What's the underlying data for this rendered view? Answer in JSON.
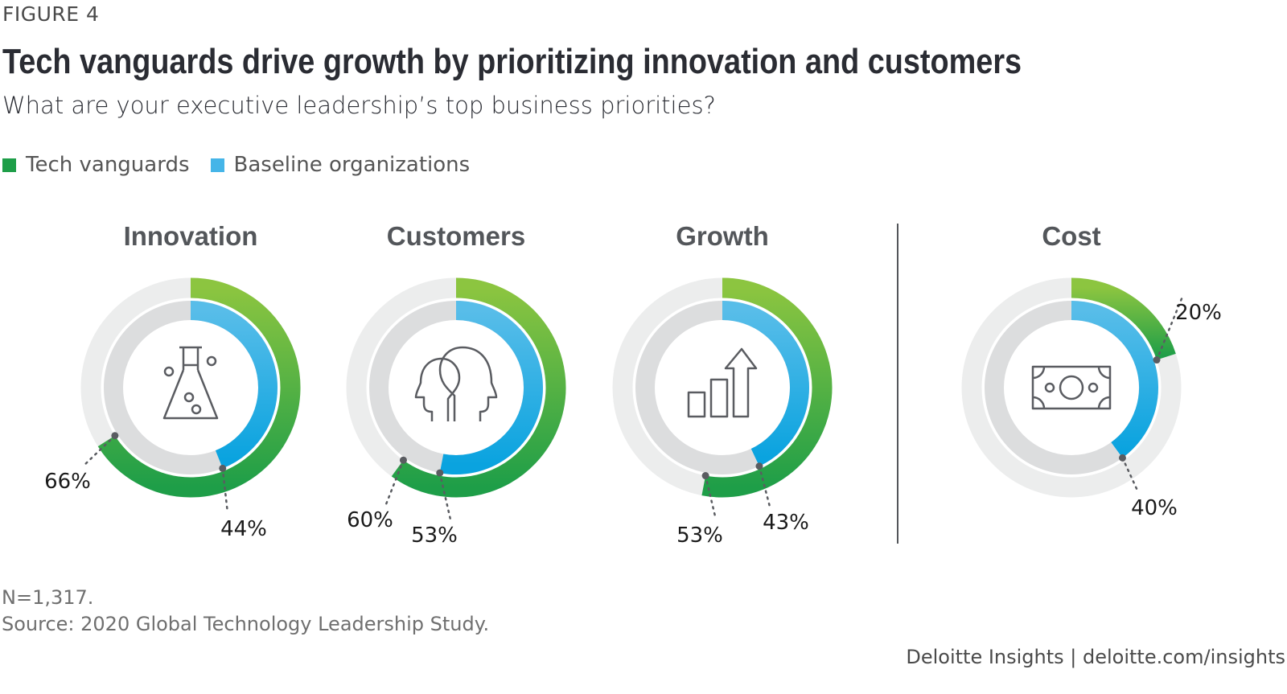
{
  "figure_label": "FIGURE 4",
  "title": "Tech vanguards drive growth by prioritizing innovation and customers",
  "subtitle": "What are your executive leadership’s top business priorities?",
  "legend": [
    {
      "label": "Tech vanguards",
      "color": "#1e9e48"
    },
    {
      "label": "Baseline organizations",
      "color": "#45b5e8"
    }
  ],
  "notes": {
    "n": "N=1,317.",
    "source": "Source: 2020 Global Technology Leadership Study."
  },
  "brand": "Deloitte Insights | deloitte.com/insights",
  "colors": {
    "vanguard_start": "#8cc540",
    "vanguard_end": "#1e9e48",
    "baseline_start": "#58bde9",
    "baseline_end": "#0aa3df",
    "outer_track": "#eceded",
    "inner_track": "#dcddde",
    "icon": "#5a5c61",
    "divider": "#53565a",
    "leader": "#5a5c61"
  },
  "chart_data": {
    "type": "donut",
    "title": "Tech vanguards drive growth by prioritizing innovation and customers",
    "subtitle": "What are your executive leadership’s top business priorities?",
    "unit": "%",
    "legend_position": "top-left",
    "series_names": [
      "Tech vanguards",
      "Baseline organizations"
    ],
    "categories": [
      {
        "name": "Innovation",
        "icon": "flask-icon",
        "tech_vanguards": 66,
        "baseline": 44,
        "labels": [
          "66%",
          "44%"
        ]
      },
      {
        "name": "Customers",
        "icon": "two-heads-icon",
        "tech_vanguards": 60,
        "baseline": 53,
        "labels": [
          "60%",
          "53%"
        ]
      },
      {
        "name": "Growth",
        "icon": "growth-chart-icon",
        "tech_vanguards": 53,
        "baseline": 43,
        "labels": [
          "53%",
          "43%"
        ]
      },
      {
        "name": "Cost",
        "icon": "banknote-icon",
        "tech_vanguards": 20,
        "baseline": 40,
        "labels": [
          "20%",
          "40%"
        ]
      }
    ]
  }
}
